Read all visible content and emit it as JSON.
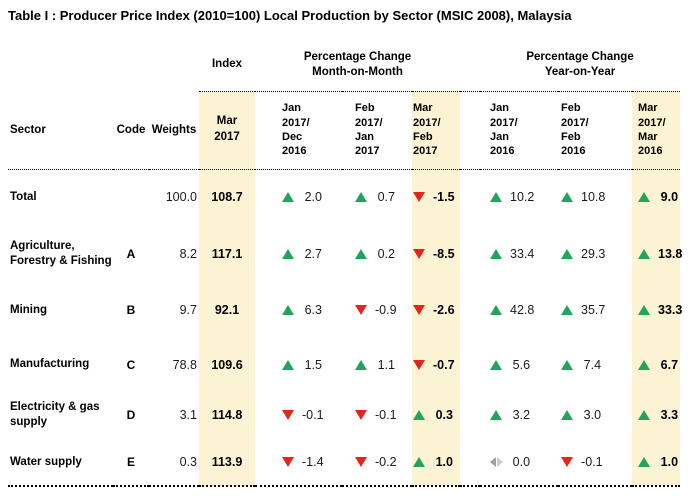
{
  "chart_data": {
    "type": "table",
    "title": "Table I : Producer Price Index (2010=100) Local Production by Sector (MSIC 2008), Malaysia",
    "columns": {
      "sector": "Sector",
      "code": "Code",
      "weights": "Weights",
      "index_group": "Index",
      "index_sub": "Mar\n2017",
      "mom_group": "Percentage Change\nMonth-on-Month",
      "mom_subs": [
        "Jan\n2017/\nDec\n2016",
        "Feb\n2017/\nJan\n2017",
        "Mar\n2017/\nFeb\n2017"
      ],
      "yoy_group": "Percentage Change\nYear-on-Year",
      "yoy_subs": [
        "Jan\n2017/\nJan\n2016",
        "Feb\n2017/\nFeb\n2016",
        "Mar\n2017/\nMar\n2016"
      ]
    },
    "rows": [
      {
        "sector": "Total",
        "code": "",
        "weights": "100.0",
        "index": "108.7",
        "mom": [
          {
            "dir": "up",
            "val": "2.0"
          },
          {
            "dir": "up",
            "val": "0.7"
          },
          {
            "dir": "down",
            "val": "-1.5"
          }
        ],
        "yoy": [
          {
            "dir": "up",
            "val": "10.2"
          },
          {
            "dir": "up",
            "val": "10.8"
          },
          {
            "dir": "up",
            "val": "9.0"
          }
        ]
      },
      {
        "sector": "Agriculture, Forestry & Fishing",
        "code": "A",
        "weights": "8.2",
        "index": "117.1",
        "mom": [
          {
            "dir": "up",
            "val": "2.7"
          },
          {
            "dir": "up",
            "val": "0.2"
          },
          {
            "dir": "down",
            "val": "-8.5"
          }
        ],
        "yoy": [
          {
            "dir": "up",
            "val": "33.4"
          },
          {
            "dir": "up",
            "val": "29.3"
          },
          {
            "dir": "up",
            "val": "13.8"
          }
        ]
      },
      {
        "sector": "Mining",
        "code": "B",
        "weights": "9.7",
        "index": "92.1",
        "mom": [
          {
            "dir": "up",
            "val": "6.3"
          },
          {
            "dir": "down",
            "val": "-0.9"
          },
          {
            "dir": "down",
            "val": "-2.6"
          }
        ],
        "yoy": [
          {
            "dir": "up",
            "val": "42.8"
          },
          {
            "dir": "up",
            "val": "35.7"
          },
          {
            "dir": "up",
            "val": "33.3"
          }
        ]
      },
      {
        "sector": "Manufacturing",
        "code": "C",
        "weights": "78.8",
        "index": "109.6",
        "mom": [
          {
            "dir": "up",
            "val": "1.5"
          },
          {
            "dir": "up",
            "val": "1.1"
          },
          {
            "dir": "down",
            "val": "-0.7"
          }
        ],
        "yoy": [
          {
            "dir": "up",
            "val": "5.6"
          },
          {
            "dir": "up",
            "val": "7.4"
          },
          {
            "dir": "up",
            "val": "6.7"
          }
        ]
      },
      {
        "sector": "Electricity & gas supply",
        "code": "D",
        "weights": "3.1",
        "index": "114.8",
        "mom": [
          {
            "dir": "down",
            "val": "-0.1"
          },
          {
            "dir": "down",
            "val": "-0.1"
          },
          {
            "dir": "up",
            "val": "0.3"
          }
        ],
        "yoy": [
          {
            "dir": "up",
            "val": "3.2"
          },
          {
            "dir": "up",
            "val": "3.0"
          },
          {
            "dir": "up",
            "val": "3.3"
          }
        ]
      },
      {
        "sector": "Water supply",
        "code": "E",
        "weights": "0.3",
        "index": "113.9",
        "mom": [
          {
            "dir": "down",
            "val": "-1.4"
          },
          {
            "dir": "down",
            "val": "-0.2"
          },
          {
            "dir": "up",
            "val": "1.0"
          }
        ],
        "yoy": [
          {
            "dir": "flat",
            "val": "0.0"
          },
          {
            "dir": "down",
            "val": "-0.1"
          },
          {
            "dir": "up",
            "val": "1.0"
          }
        ]
      }
    ],
    "colors": {
      "highlight_column": "#FCF2D4",
      "up_triangle": "#22A45D",
      "down_triangle": "#E3261D",
      "no_change_dark": "#9E9E9E",
      "no_change_light": "#CDCDCD",
      "text": "#1A1A1A"
    }
  }
}
